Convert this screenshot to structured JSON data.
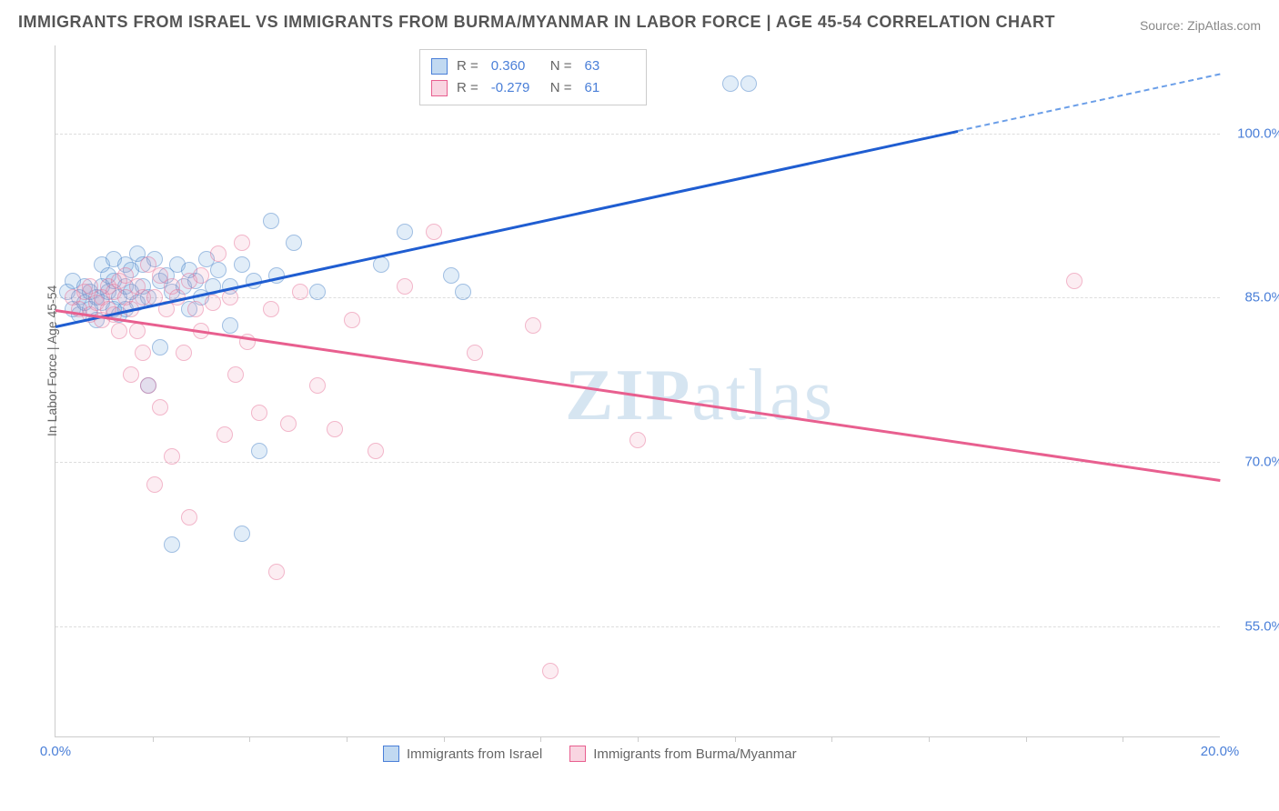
{
  "title": "IMMIGRANTS FROM ISRAEL VS IMMIGRANTS FROM BURMA/MYANMAR IN LABOR FORCE | AGE 45-54 CORRELATION CHART",
  "source": "Source: ZipAtlas.com",
  "ylabel": "In Labor Force | Age 45-54",
  "watermark_zip": "ZIP",
  "watermark_rest": "atlas",
  "chart": {
    "type": "scatter",
    "xlim": [
      0,
      20
    ],
    "ylim": [
      45,
      108
    ],
    "yticks": [
      55,
      70,
      85,
      100
    ],
    "ytick_labels": [
      "55.0%",
      "70.0%",
      "85.0%",
      "100.0%"
    ],
    "xticks": [
      0,
      20
    ],
    "xtick_labels": [
      "0.0%",
      "20.0%"
    ],
    "xminor": [
      1.67,
      3.33,
      5.0,
      6.67,
      8.33,
      10.0,
      11.67,
      13.33,
      15.0,
      16.67,
      18.33
    ],
    "background_color": "#ffffff",
    "grid_color": "#dddddd",
    "series": [
      {
        "name": "Immigrants from Israel",
        "color_fill": "rgba(100,160,220,0.35)",
        "color_stroke": "#4a7fd8",
        "R": "0.360",
        "N": "63",
        "trend": {
          "x0": 0,
          "y0": 82.5,
          "x1": 20,
          "y1": 105.5,
          "solid_until_x": 15.5
        },
        "points": [
          [
            0.2,
            85.5
          ],
          [
            0.3,
            84
          ],
          [
            0.3,
            86.5
          ],
          [
            0.4,
            85
          ],
          [
            0.4,
            83.5
          ],
          [
            0.5,
            86
          ],
          [
            0.5,
            84.5
          ],
          [
            0.6,
            85.5
          ],
          [
            0.6,
            84
          ],
          [
            0.7,
            85
          ],
          [
            0.7,
            83
          ],
          [
            0.8,
            86
          ],
          [
            0.8,
            88
          ],
          [
            0.8,
            84.5
          ],
          [
            0.9,
            85.5
          ],
          [
            0.9,
            87
          ],
          [
            1.0,
            84
          ],
          [
            1.0,
            86.5
          ],
          [
            1.0,
            88.5
          ],
          [
            1.1,
            85
          ],
          [
            1.1,
            83.5
          ],
          [
            1.2,
            86
          ],
          [
            1.2,
            88
          ],
          [
            1.2,
            84
          ],
          [
            1.3,
            85.5
          ],
          [
            1.3,
            87.5
          ],
          [
            1.4,
            89
          ],
          [
            1.4,
            84.5
          ],
          [
            1.5,
            86
          ],
          [
            1.5,
            88
          ],
          [
            1.6,
            85
          ],
          [
            1.6,
            77
          ],
          [
            1.7,
            88.5
          ],
          [
            1.8,
            86.5
          ],
          [
            1.8,
            80.5
          ],
          [
            1.9,
            87
          ],
          [
            2.0,
            85.5
          ],
          [
            2.0,
            62.5
          ],
          [
            2.1,
            88
          ],
          [
            2.2,
            86
          ],
          [
            2.3,
            84
          ],
          [
            2.3,
            87.5
          ],
          [
            2.4,
            86.5
          ],
          [
            2.5,
            85
          ],
          [
            2.6,
            88.5
          ],
          [
            2.7,
            86
          ],
          [
            2.8,
            87.5
          ],
          [
            3.0,
            86
          ],
          [
            3.0,
            82.5
          ],
          [
            3.2,
            88
          ],
          [
            3.2,
            63.5
          ],
          [
            3.4,
            86.5
          ],
          [
            3.5,
            71
          ],
          [
            3.7,
            92
          ],
          [
            3.8,
            87
          ],
          [
            4.1,
            90
          ],
          [
            4.5,
            85.5
          ],
          [
            5.6,
            88
          ],
          [
            6.0,
            91
          ],
          [
            6.8,
            87
          ],
          [
            7.0,
            85.5
          ],
          [
            11.6,
            104.5
          ],
          [
            11.9,
            104.5
          ]
        ]
      },
      {
        "name": "Immigrants from Burma/Myanmar",
        "color_fill": "rgba(240,150,180,0.3)",
        "color_stroke": "#e85f8f",
        "R": "-0.279",
        "N": "61",
        "trend": {
          "x0": 0,
          "y0": 84,
          "x1": 20,
          "y1": 68.5
        },
        "points": [
          [
            0.3,
            85
          ],
          [
            0.4,
            84
          ],
          [
            0.5,
            85.5
          ],
          [
            0.6,
            83.5
          ],
          [
            0.6,
            86
          ],
          [
            0.7,
            84.5
          ],
          [
            0.8,
            85
          ],
          [
            0.8,
            83
          ],
          [
            0.9,
            86
          ],
          [
            0.9,
            84
          ],
          [
            1.0,
            85.5
          ],
          [
            1.0,
            83.5
          ],
          [
            1.1,
            86.5
          ],
          [
            1.1,
            82
          ],
          [
            1.2,
            85
          ],
          [
            1.2,
            87
          ],
          [
            1.3,
            84
          ],
          [
            1.3,
            78
          ],
          [
            1.4,
            86
          ],
          [
            1.4,
            82
          ],
          [
            1.5,
            85
          ],
          [
            1.5,
            80
          ],
          [
            1.6,
            88
          ],
          [
            1.6,
            77
          ],
          [
            1.7,
            85
          ],
          [
            1.7,
            68
          ],
          [
            1.8,
            87
          ],
          [
            1.8,
            75
          ],
          [
            1.9,
            84
          ],
          [
            2.0,
            86
          ],
          [
            2.0,
            70.5
          ],
          [
            2.1,
            85
          ],
          [
            2.2,
            80
          ],
          [
            2.3,
            86.5
          ],
          [
            2.3,
            65
          ],
          [
            2.4,
            84
          ],
          [
            2.5,
            87
          ],
          [
            2.5,
            82
          ],
          [
            2.7,
            84.5
          ],
          [
            2.8,
            89
          ],
          [
            2.9,
            72.5
          ],
          [
            3.0,
            85
          ],
          [
            3.1,
            78
          ],
          [
            3.2,
            90
          ],
          [
            3.3,
            81
          ],
          [
            3.5,
            74.5
          ],
          [
            3.7,
            84
          ],
          [
            3.8,
            60
          ],
          [
            4.0,
            73.5
          ],
          [
            4.2,
            85.5
          ],
          [
            4.5,
            77
          ],
          [
            4.8,
            73
          ],
          [
            5.1,
            83
          ],
          [
            5.5,
            71
          ],
          [
            6.0,
            86
          ],
          [
            6.5,
            91
          ],
          [
            7.2,
            80
          ],
          [
            8.2,
            82.5
          ],
          [
            8.5,
            51
          ],
          [
            10.0,
            72
          ],
          [
            17.5,
            86.5
          ]
        ]
      }
    ]
  },
  "legend_bottom": [
    {
      "swatch": "blue",
      "label": "Immigrants from Israel"
    },
    {
      "swatch": "pink",
      "label": "Immigrants from Burma/Myanmar"
    }
  ],
  "legend_top_labels": {
    "R": "R =",
    "N": "N ="
  }
}
